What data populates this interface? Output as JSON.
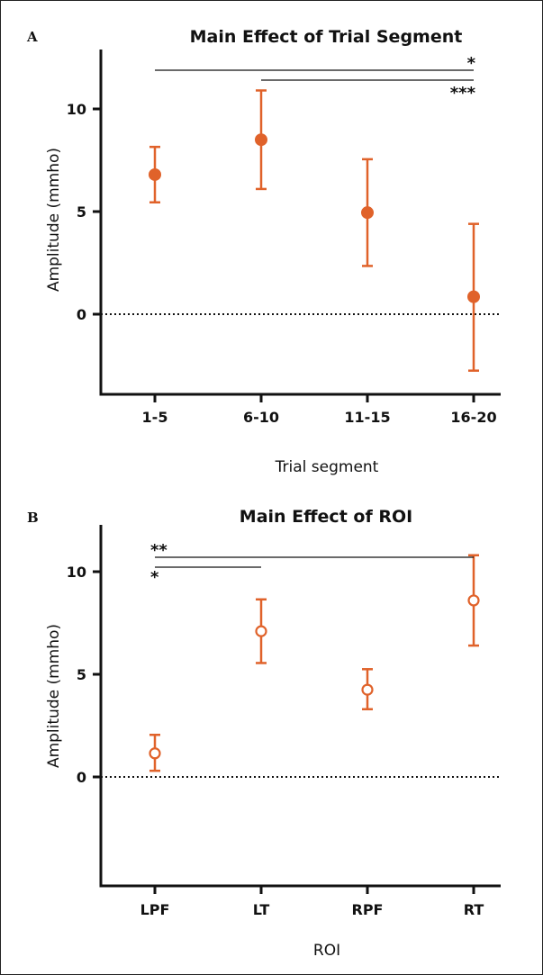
{
  "chart_data": [
    {
      "type": "scatter",
      "panel": "A",
      "title": "Main Effect of Trial Segment",
      "xlabel": "Trial segment",
      "ylabel": "Amplitude (mmho)",
      "categories": [
        "1-5",
        "6-10",
        "11-15",
        "16-20"
      ],
      "values": [
        6.8,
        8.5,
        4.95,
        0.85
      ],
      "error_low": [
        5.45,
        6.1,
        2.35,
        -2.75
      ],
      "error_high": [
        8.15,
        10.9,
        7.55,
        4.4
      ],
      "marker": "filled-circle",
      "color": "#E0622A",
      "ylim": [
        -4,
        13
      ],
      "yticks": [
        0,
        5,
        10
      ],
      "ytick_labels": [
        "0",
        "5",
        "10"
      ],
      "reference_line": 0,
      "grid": false,
      "significance": [
        {
          "from": "1-5",
          "to": "16-20",
          "label": "*"
        },
        {
          "from": "6-10",
          "to": "16-20",
          "label": "***"
        }
      ]
    },
    {
      "type": "scatter",
      "panel": "B",
      "title": "Main Effect of ROI",
      "xlabel": "ROI",
      "ylabel": "Amplitude (mmho)",
      "categories": [
        "LPF",
        "LT",
        "RPF",
        "RT"
      ],
      "values": [
        1.15,
        7.1,
        4.25,
        8.6
      ],
      "error_low": [
        0.3,
        5.55,
        3.3,
        6.4
      ],
      "error_high": [
        2.05,
        8.65,
        5.25,
        10.8
      ],
      "marker": "open-circle",
      "color": "#E0622A",
      "ylim": [
        -4,
        13
      ],
      "yticks": [
        0,
        5,
        10
      ],
      "ytick_labels": [
        "0",
        "5",
        "10"
      ],
      "reference_line": 0,
      "grid": false,
      "significance": [
        {
          "from": "LPF",
          "to": "RT",
          "label": "**"
        },
        {
          "from": "LPF",
          "to": "LT",
          "label": "*"
        }
      ]
    }
  ]
}
